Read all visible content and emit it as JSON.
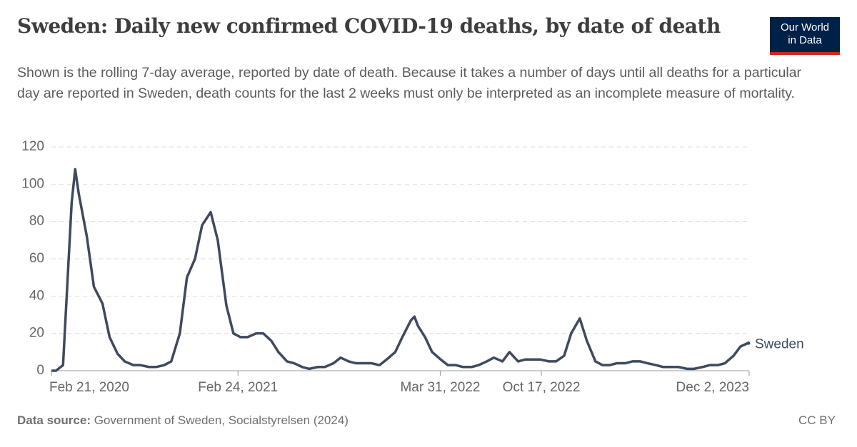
{
  "chart_data": {
    "type": "line",
    "title": "Sweden: Daily new confirmed COVID-19 deaths, by date of death",
    "subtitle": "Shown is the rolling 7-day average, reported by date of death. Because it takes a number of days until all deaths for a particular day are reported in Sweden, death counts for the last 2 weeks must only be interpreted as an incomplete measure of mortality.",
    "logo": [
      "Our World",
      "in Data"
    ],
    "source_label": "Data source:",
    "source": "Government of Sweden, Socialstyrelsen (2024)",
    "license": "CC BY",
    "x": [
      "2020-02-21",
      "2020-03-01",
      "2020-03-15",
      "2020-04-01",
      "2020-04-08",
      "2020-04-15",
      "2020-05-01",
      "2020-05-15",
      "2020-06-01",
      "2020-06-15",
      "2020-07-01",
      "2020-07-15",
      "2020-08-01",
      "2020-08-15",
      "2020-09-01",
      "2020-09-15",
      "2020-10-01",
      "2020-10-15",
      "2020-11-01",
      "2020-11-15",
      "2020-12-01",
      "2020-12-15",
      "2021-01-01",
      "2021-01-15",
      "2021-02-01",
      "2021-02-15",
      "2021-03-01",
      "2021-03-15",
      "2021-04-01",
      "2021-04-15",
      "2021-05-01",
      "2021-05-15",
      "2021-06-01",
      "2021-06-15",
      "2021-07-01",
      "2021-07-15",
      "2021-08-01",
      "2021-08-15",
      "2021-09-01",
      "2021-09-15",
      "2021-10-01",
      "2021-10-15",
      "2021-11-01",
      "2021-11-15",
      "2021-12-01",
      "2021-12-15",
      "2022-01-01",
      "2022-01-15",
      "2022-02-01",
      "2022-02-08",
      "2022-02-15",
      "2022-03-01",
      "2022-03-15",
      "2022-04-01",
      "2022-04-15",
      "2022-05-01",
      "2022-05-15",
      "2022-06-01",
      "2022-06-15",
      "2022-07-01",
      "2022-07-15",
      "2022-08-01",
      "2022-08-15",
      "2022-09-01",
      "2022-09-15",
      "2022-10-01",
      "2022-10-15",
      "2022-11-01",
      "2022-11-15",
      "2022-12-01",
      "2022-12-15",
      "2023-01-01",
      "2023-01-15",
      "2023-02-01",
      "2023-02-15",
      "2023-03-01",
      "2023-03-15",
      "2023-04-01",
      "2023-04-15",
      "2023-05-01",
      "2023-05-15",
      "2023-06-01",
      "2023-06-15",
      "2023-07-01",
      "2023-07-15",
      "2023-08-01",
      "2023-08-15",
      "2023-09-01",
      "2023-09-15",
      "2023-10-01",
      "2023-10-15",
      "2023-11-01",
      "2023-11-15",
      "2023-12-01",
      "2023-12-02"
    ],
    "series": [
      {
        "name": "Sweden",
        "color": "#3e4a5e",
        "values": [
          0,
          0,
          3,
          90,
          108,
          95,
          72,
          45,
          36,
          18,
          9,
          5,
          3,
          3,
          2,
          2,
          3,
          5,
          20,
          50,
          60,
          78,
          85,
          70,
          35,
          20,
          18,
          18,
          20,
          20,
          16,
          10,
          5,
          4,
          2,
          1,
          2,
          2,
          4,
          7,
          5,
          4,
          4,
          4,
          3,
          6,
          10,
          18,
          27,
          29,
          24,
          18,
          10,
          6,
          3,
          3,
          2,
          2,
          3,
          5,
          7,
          5,
          10,
          5,
          6,
          6,
          6,
          5,
          5,
          8,
          20,
          28,
          16,
          5,
          3,
          3,
          4,
          4,
          5,
          5,
          4,
          3,
          2,
          2,
          2,
          1,
          1,
          2,
          3,
          3,
          4,
          8,
          13,
          15,
          14
        ]
      }
    ],
    "xlim": [
      "2020-02-21",
      "2023-12-02"
    ],
    "xticks": [
      {
        "value": "2020-02-21",
        "label": "Feb 21, 2020"
      },
      {
        "value": "2021-02-24",
        "label": "Feb 24, 2021"
      },
      {
        "value": "2022-03-31",
        "label": "Mar 31, 2022"
      },
      {
        "value": "2022-10-17",
        "label": "Oct 17, 2022"
      },
      {
        "value": "2023-12-02",
        "label": "Dec 2, 2023"
      }
    ],
    "ylim": [
      0,
      120
    ],
    "yticks": [
      0,
      20,
      40,
      60,
      80,
      100,
      120
    ],
    "grid": true
  }
}
